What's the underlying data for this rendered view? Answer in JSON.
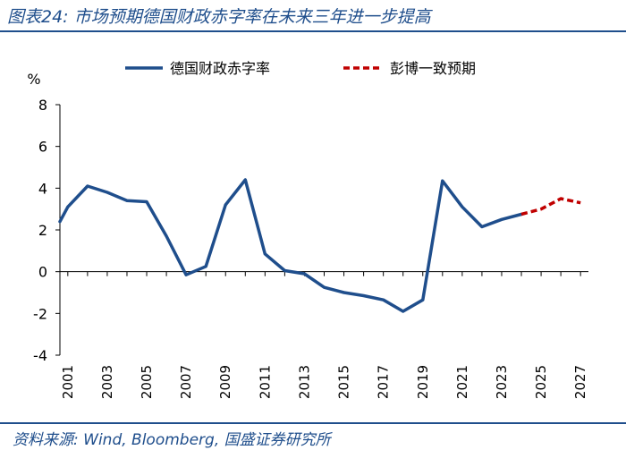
{
  "header": {
    "title": "图表24:  市场预期德国财政赤字率在未来三年进一步提高"
  },
  "footer": {
    "source": "资料来源:  Wind, Bloomberg, 国盛证券研究所"
  },
  "colors": {
    "brand": "#1f4e8c",
    "actual_line": "#1f4e8c",
    "forecast_line": "#c00000"
  },
  "chart_data": {
    "type": "line",
    "title": "",
    "ylabel": "%",
    "xlabel": "",
    "ylim": [
      -4,
      8
    ],
    "yticks": [
      8,
      6,
      4,
      2,
      0,
      -2,
      -4
    ],
    "xlim": [
      2000.6,
      2027.4
    ],
    "xticks": [
      2001,
      2003,
      2005,
      2007,
      2009,
      2011,
      2013,
      2015,
      2017,
      2019,
      2021,
      2023,
      2025,
      2027
    ],
    "legend_position": "top",
    "series": [
      {
        "name": "德国财政赤字率",
        "style": "solid",
        "x": [
          2000.6,
          2001,
          2002,
          2003,
          2004,
          2005,
          2006,
          2007,
          2008,
          2009,
          2010,
          2011,
          2012,
          2013,
          2014,
          2015,
          2016,
          2017,
          2018,
          2019,
          2020,
          2021,
          2022,
          2023,
          2024
        ],
        "values": [
          2.4,
          3.1,
          4.1,
          3.8,
          3.4,
          3.35,
          1.7,
          -0.15,
          0.25,
          3.2,
          4.4,
          0.85,
          0.05,
          -0.1,
          -0.75,
          -1.0,
          -1.15,
          -1.35,
          -1.9,
          -1.35,
          4.35,
          3.1,
          2.15,
          2.5,
          2.75
        ]
      },
      {
        "name": "彭博一致预期",
        "style": "dashed",
        "x": [
          2024,
          2025,
          2026,
          2027
        ],
        "values": [
          2.75,
          3.0,
          3.5,
          3.3
        ]
      }
    ]
  }
}
